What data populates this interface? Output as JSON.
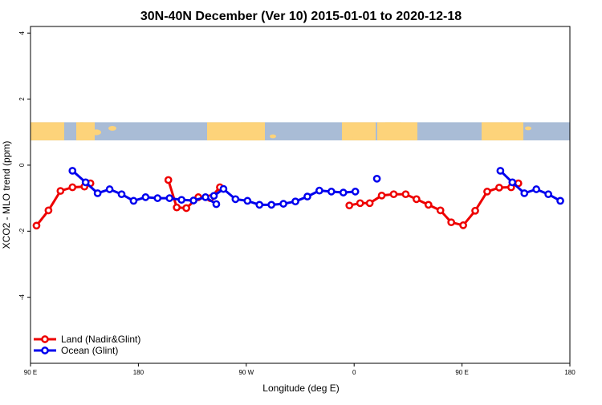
{
  "chart_data": {
    "type": "line",
    "title": "30N-40N December (Ver 10)   2015-01-01 to 2020-12-18",
    "xlabel": "Longitude (deg E)",
    "ylabel": "XCO2 - MLO trend (ppm)",
    "xlim": [
      90,
      540
    ],
    "ylim": [
      -6,
      4.2
    ],
    "x_ticks": [
      {
        "value": 90,
        "label": "90 E"
      },
      {
        "value": 180,
        "label": "180"
      },
      {
        "value": 270,
        "label": "90 W"
      },
      {
        "value": 360,
        "label": "0"
      },
      {
        "value": 450,
        "label": "90 E"
      },
      {
        "value": 540,
        "label": "180"
      }
    ],
    "y_ticks": [
      {
        "value": 4,
        "label": "4"
      },
      {
        "value": 2,
        "label": "2"
      },
      {
        "value": 0,
        "label": "0"
      },
      {
        "value": -2,
        "label": "-2"
      },
      {
        "value": -4,
        "label": "-4"
      }
    ],
    "x_unit_note": "",
    "map_band": {
      "y_range": [
        0.75,
        1.3
      ],
      "ocean_color": "#a9bcd6",
      "land_color": "#fdd37a"
    },
    "grid": false,
    "legend_position": "bottom-left",
    "series": [
      {
        "name": "Land (Nadir&Glint)",
        "color": "#ee0000",
        "segments": [
          [
            [
              95,
              -1.83
            ],
            [
              105,
              -1.37
            ],
            [
              115,
              -0.78
            ],
            [
              125,
              -0.67
            ],
            [
              135,
              -0.65
            ],
            [
              140,
              -0.55
            ]
          ],
          [
            [
              205,
              -0.45
            ],
            [
              212,
              -1.28
            ],
            [
              220,
              -1.3
            ],
            [
              230,
              -0.97
            ],
            [
              240,
              -1.0
            ],
            [
              248,
              -0.67
            ]
          ],
          [
            [
              356,
              -1.22
            ],
            [
              365,
              -1.15
            ],
            [
              373,
              -1.15
            ],
            [
              383,
              -0.92
            ],
            [
              393,
              -0.88
            ],
            [
              403,
              -0.88
            ],
            [
              412,
              -1.03
            ],
            [
              422,
              -1.2
            ],
            [
              432,
              -1.37
            ],
            [
              441,
              -1.73
            ],
            [
              451,
              -1.82
            ],
            [
              461,
              -1.38
            ],
            [
              471,
              -0.8
            ],
            [
              481,
              -0.68
            ],
            [
              491,
              -0.67
            ],
            [
              497,
              -0.55
            ]
          ]
        ]
      },
      {
        "name": "Ocean (Glint)",
        "color": "#0000ee",
        "segments": [
          [
            [
              125,
              -0.17
            ],
            [
              136,
              -0.52
            ],
            [
              146,
              -0.85
            ],
            [
              156,
              -0.73
            ],
            [
              166,
              -0.88
            ],
            [
              176,
              -1.08
            ],
            [
              186,
              -0.97
            ],
            [
              196,
              -1.0
            ],
            [
              206,
              -1.0
            ],
            [
              216,
              -1.05
            ],
            [
              226,
              -1.07
            ],
            [
              236,
              -0.97
            ],
            [
              245,
              -1.18
            ]
          ],
          [
            [
              243,
              -0.93
            ],
            [
              251,
              -0.72
            ],
            [
              261,
              -1.03
            ],
            [
              271,
              -1.08
            ],
            [
              281,
              -1.2
            ],
            [
              291,
              -1.2
            ],
            [
              301,
              -1.17
            ],
            [
              311,
              -1.1
            ],
            [
              321,
              -0.95
            ],
            [
              331,
              -0.77
            ],
            [
              341,
              -0.8
            ],
            [
              351,
              -0.83
            ],
            [
              361,
              -0.8
            ]
          ],
          [
            [
              379,
              -0.41
            ]
          ],
          [
            [
              482,
              -0.17
            ],
            [
              492,
              -0.52
            ],
            [
              502,
              -0.85
            ],
            [
              512,
              -0.73
            ],
            [
              522,
              -0.88
            ],
            [
              532,
              -1.08
            ]
          ]
        ]
      }
    ]
  }
}
